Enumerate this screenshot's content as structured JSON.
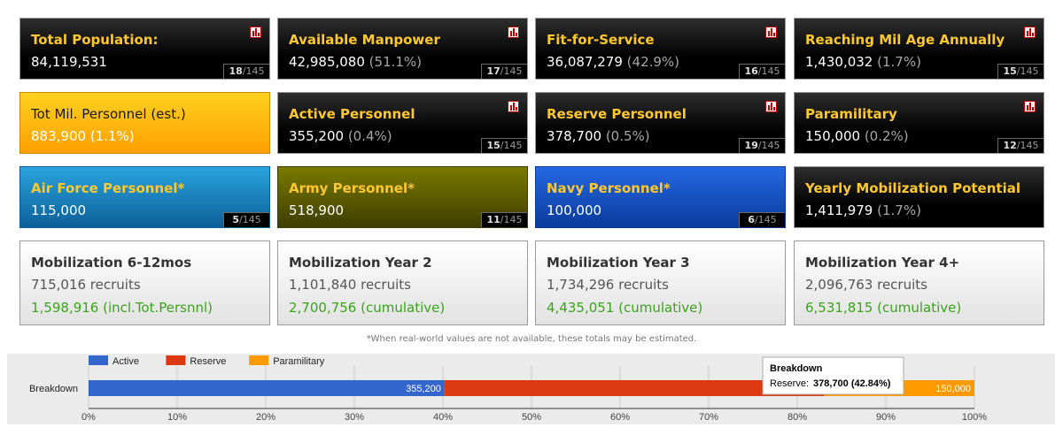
{
  "cards": {
    "total_population": {
      "title": "Total Population:",
      "value": "84,119,531",
      "rank": "18",
      "rank_total": "/145"
    },
    "available_manpower": {
      "title": "Available Manpower",
      "value": "42,985,080",
      "pct": "(51.1%)",
      "rank": "17",
      "rank_total": "/145"
    },
    "fit_for_service": {
      "title": "Fit-for-Service",
      "value": "36,087,279",
      "pct": "(42.9%)",
      "rank": "16",
      "rank_total": "/145"
    },
    "reaching_mil_age": {
      "title": "Reaching Mil Age Annually",
      "value": "1,430,032",
      "pct": "(1.7%)",
      "rank": "15",
      "rank_total": "/145"
    },
    "tot_mil_personnel": {
      "title": "Tot Mil. Personnel (est.)",
      "value": "883,900",
      "pct": "(1.1%)"
    },
    "active_personnel": {
      "title": "Active Personnel",
      "value": "355,200",
      "pct": "(0.4%)",
      "rank": "15",
      "rank_total": "/145"
    },
    "reserve_personnel": {
      "title": "Reserve Personnel",
      "value": "378,700",
      "pct": "(0.5%)",
      "rank": "19",
      "rank_total": "/145"
    },
    "paramilitary": {
      "title": "Paramilitary",
      "value": "150,000",
      "pct": "(0.2%)",
      "rank": "12",
      "rank_total": "/145"
    },
    "air_force": {
      "title": "Air Force Personnel*",
      "value": "115,000",
      "rank": "5",
      "rank_total": "/145"
    },
    "army": {
      "title": "Army Personnel*",
      "value": "518,900",
      "rank": "11",
      "rank_total": "/145"
    },
    "navy": {
      "title": "Navy Personnel*",
      "value": "100,000",
      "rank": "6",
      "rank_total": "/145"
    },
    "yearly_mobilization": {
      "title": "Yearly Mobilization Potential",
      "value": "1,411,979",
      "pct": "(1.7%)"
    },
    "mob_6_12": {
      "title": "Mobilization 6-12mos",
      "recruits": "715,016 recruits",
      "cumulative": "1,598,916 (incl.Tot.Persnnl)"
    },
    "mob_y2": {
      "title": "Mobilization Year 2",
      "recruits": "1,101,840 recruits",
      "cumulative": "2,700,756 (cumulative)"
    },
    "mob_y3": {
      "title": "Mobilization Year 3",
      "recruits": "1,734,296 recruits",
      "cumulative": "4,435,051 (cumulative)"
    },
    "mob_y4": {
      "title": "Mobilization Year 4+",
      "recruits": "2,096,763 recruits",
      "cumulative": "6,531,815 (cumulative)"
    }
  },
  "note": "*When real-world values are not available, these totals may be estimated.",
  "chart_data": {
    "type": "bar",
    "orientation": "horizontal",
    "stacked": "percent",
    "categories": [
      "Breakdown"
    ],
    "series": [
      {
        "name": "Active",
        "values": [
          355200
        ],
        "color": "#3366cc",
        "label": "355,200"
      },
      {
        "name": "Reserve",
        "values": [
          378700
        ],
        "color": "#dc3912",
        "label": ""
      },
      {
        "name": "Paramilitary",
        "values": [
          150000
        ],
        "color": "#ff9900",
        "label": "150,000"
      }
    ],
    "xlim": [
      0,
      100
    ],
    "xticks": [
      "0%",
      "10%",
      "20%",
      "30%",
      "40%",
      "50%",
      "60%",
      "70%",
      "80%",
      "90%",
      "100%"
    ],
    "legend": "top",
    "grid": true,
    "tooltip": {
      "title": "Breakdown",
      "series": "Reserve:",
      "value": "378,700 (42.84%)"
    }
  }
}
